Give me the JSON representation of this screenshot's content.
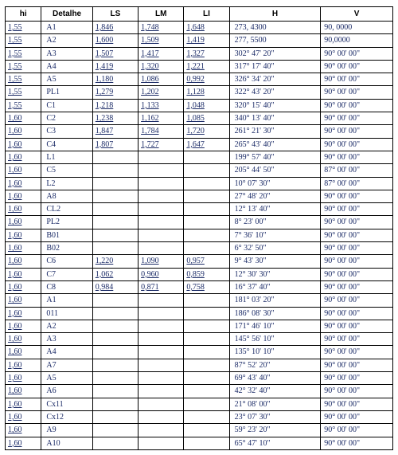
{
  "headers": {
    "hi": "hi",
    "det": "Detalhe",
    "ls": "LS",
    "lm": "LM",
    "li": "LI",
    "h": "H",
    "v": "V"
  },
  "rows": [
    {
      "hi": "1,55",
      "det": "A1",
      "ls": "1,846",
      "lm": "1,748",
      "li": "1,648",
      "h": "273, 4300",
      "v": "90, 0000"
    },
    {
      "hi": "1,55",
      "det": "A2",
      "ls": "1,600",
      "lm": "1,509",
      "li": "1,419",
      "h": "277, 5500",
      "v": "90,0000"
    },
    {
      "hi": "1,55",
      "det": "A3",
      "ls": "1,507",
      "lm": "1,417",
      "li": "1,327",
      "h": "302° 47' 20\"",
      "v": "90° 00' 00\""
    },
    {
      "hi": "1,55",
      "det": "A4",
      "ls": "1,419",
      "lm": "1,320",
      "li": "1,221",
      "h": "317° 17' 40\"",
      "v": "90° 00' 00\""
    },
    {
      "hi": "1,55",
      "det": "A5",
      "ls": "1,180",
      "lm": "1,086",
      "li": "0,992",
      "h": "326° 34' 20\"",
      "v": "90° 00' 00\""
    },
    {
      "hi": "1,55",
      "det": "PL1",
      "ls": "1,279",
      "lm": "1,202",
      "li": "1,128",
      "h": "322° 43' 20\"",
      "v": "90° 00' 00\""
    },
    {
      "hi": "1,55",
      "det": "C1",
      "ls": "1,218",
      "lm": "1,133",
      "li": "1,048",
      "h": "320° 15' 40\"",
      "v": "90° 00' 00\""
    },
    {
      "hi": "1,60",
      "det": "C2",
      "ls": "1,238",
      "lm": "1,162",
      "li": "1,085",
      "h": "340° 13' 40\"",
      "v": "90° 00' 00\""
    },
    {
      "hi": "1,60",
      "det": "C3",
      "ls": "1,847",
      "lm": "1,784",
      "li": "1,720",
      "h": "261° 21' 30\"",
      "v": "90° 00' 00\""
    },
    {
      "hi": "1,60",
      "det": "C4",
      "ls": "1,807",
      "lm": "1,727",
      "li": "1,647",
      "h": "265° 43' 40\"",
      "v": "90° 00' 00\""
    },
    {
      "hi": "1,60",
      "det": "L1",
      "ls": "",
      "lm": "",
      "li": "",
      "h": "199° 57' 40\"",
      "v": "90° 00' 00\""
    },
    {
      "hi": "1,60",
      "det": "C5",
      "ls": "",
      "lm": "",
      "li": "",
      "h": "205° 44' 50\"",
      "v": "87° 00' 00\""
    },
    {
      "hi": "1,60",
      "det": "L2",
      "ls": "",
      "lm": "",
      "li": "",
      "h": "10° 07' 30\"",
      "v": "87° 00' 00\""
    },
    {
      "hi": "1,60",
      "det": "A8",
      "ls": "",
      "lm": "",
      "li": "",
      "h": "27° 48' 20\"",
      "v": "90° 00' 00\""
    },
    {
      "hi": "1,60",
      "det": "CL2",
      "ls": "",
      "lm": "",
      "li": "",
      "h": "12° 13' 40\"",
      "v": "90° 00' 00\""
    },
    {
      "hi": "1,60",
      "det": "PL2",
      "ls": "",
      "lm": "",
      "li": "",
      "h": "8° 23' 00\"",
      "v": "90° 00' 00\""
    },
    {
      "hi": "1,60",
      "det": "B01",
      "ls": "",
      "lm": "",
      "li": "",
      "h": "7° 36' 10\"",
      "v": "90° 00' 00\""
    },
    {
      "hi": "1,60",
      "det": "B02",
      "ls": "",
      "lm": "",
      "li": "",
      "h": "6° 32' 50\"",
      "v": "90° 00' 00\""
    },
    {
      "hi": "1,60",
      "det": "C6",
      "ls": "1,220",
      "lm": "1,090",
      "li": "0,957",
      "h": "9° 43' 30\"",
      "v": "90° 00' 00\""
    },
    {
      "hi": "1,60",
      "det": "C7",
      "ls": "1,062",
      "lm": "0,960",
      "li": "0,859",
      "h": "12° 30' 30\"",
      "v": "90° 00' 00\""
    },
    {
      "hi": "1,60",
      "det": "C8",
      "ls": "0,984",
      "lm": "0,871",
      "li": "0,758",
      "h": "16° 37' 40\"",
      "v": "90° 00' 00\""
    },
    {
      "hi": "1,60",
      "det": "A1",
      "ls": "",
      "lm": "",
      "li": "",
      "h": "181° 03' 20\"",
      "v": "90° 00' 00\""
    },
    {
      "hi": "1,60",
      "det": "011",
      "ls": "",
      "lm": "",
      "li": "",
      "h": "186° 08' 30\"",
      "v": "90° 00' 00\""
    },
    {
      "hi": "1,60",
      "det": "A2",
      "ls": "",
      "lm": "",
      "li": "",
      "h": "171° 46' 10\"",
      "v": "90° 00' 00\""
    },
    {
      "hi": "1,60",
      "det": "A3",
      "ls": "",
      "lm": "",
      "li": "",
      "h": "145° 56' 10\"",
      "v": "90° 00' 00\""
    },
    {
      "hi": "1,60",
      "det": "A4",
      "ls": "",
      "lm": "",
      "li": "",
      "h": "135° 10' 10\"",
      "v": "90° 00' 00\""
    },
    {
      "hi": "1,60",
      "det": "A7",
      "ls": "",
      "lm": "",
      "li": "",
      "h": "87° 52' 20\"",
      "v": "90° 00' 00\""
    },
    {
      "hi": "1,60",
      "det": "A5",
      "ls": "",
      "lm": "",
      "li": "",
      "h": "69° 43' 40\"",
      "v": "90° 00' 00\""
    },
    {
      "hi": "1,60",
      "det": "A6",
      "ls": "",
      "lm": "",
      "li": "",
      "h": "42° 32' 40\"",
      "v": "90° 00' 00\""
    },
    {
      "hi": "1,60",
      "det": "Cx11",
      "ls": "",
      "lm": "",
      "li": "",
      "h": "21° 08' 00\"",
      "v": "90° 00' 00\""
    },
    {
      "hi": "1,60",
      "det": "Cx12",
      "ls": "",
      "lm": "",
      "li": "",
      "h": "23° 07' 30\"",
      "v": "90° 00' 00\""
    },
    {
      "hi": "1,60",
      "det": "A9",
      "ls": "",
      "lm": "",
      "li": "",
      "h": "59° 23' 20\"",
      "v": "90° 00' 00\""
    },
    {
      "hi": "1,60",
      "det": "A10",
      "ls": "",
      "lm": "",
      "li": "",
      "h": "65° 47' 10\"",
      "v": "90° 00' 00\""
    }
  ]
}
